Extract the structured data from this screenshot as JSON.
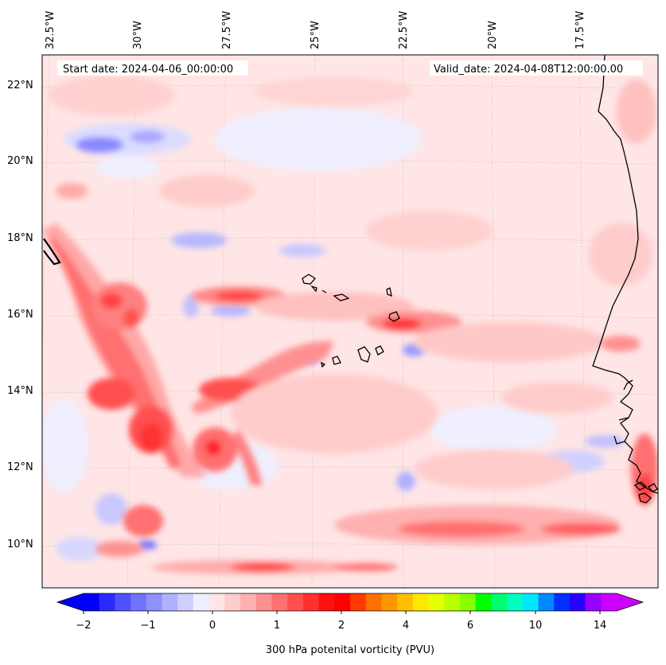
{
  "header": {
    "start_date": "Start date: 2024-04-06_00:00:00",
    "valid_date": "Valid_date: 2024-04-08T12:00:00.00"
  },
  "map": {
    "projection": "regional conic (Africa / Atlantic)",
    "lon_labels": [
      "32.5°W",
      "30°W",
      "27.5°W",
      "25°W",
      "22.5°W",
      "20°W",
      "17.5°W"
    ],
    "lat_labels": [
      "22°N",
      "20°N",
      "18°N",
      "16°N",
      "14°N",
      "12°N",
      "10°N"
    ],
    "background_color": "#ffe5e5",
    "coastline_color": "#000000"
  },
  "colorbar": {
    "label": "300 hPa potenital vorticity (PVU)",
    "tick_labels": [
      "−2",
      "−1",
      "0",
      "1",
      "2",
      "4",
      "6",
      "10",
      "14"
    ],
    "colors": [
      "#0000ff",
      "#2a2aff",
      "#5050ff",
      "#7272ff",
      "#9090ff",
      "#b0b0ff",
      "#d0d0ff",
      "#efefff",
      "#ffe5e5",
      "#ffcccc",
      "#ffb0b0",
      "#ff9090",
      "#ff7070",
      "#ff5050",
      "#ff3030",
      "#ff1010",
      "#ff0000",
      "#ff3a00",
      "#ff7000",
      "#ff9800",
      "#ffbf00",
      "#ffe800",
      "#e8ff00",
      "#b8ff00",
      "#88ff00",
      "#00ff00",
      "#00ff70",
      "#00ffbf",
      "#00e8ff",
      "#0088ff",
      "#0030ff",
      "#2a00ff",
      "#9a00ff",
      "#cc00ff"
    ],
    "under_color": "#0000ff",
    "over_color": "#cc00ff"
  }
}
